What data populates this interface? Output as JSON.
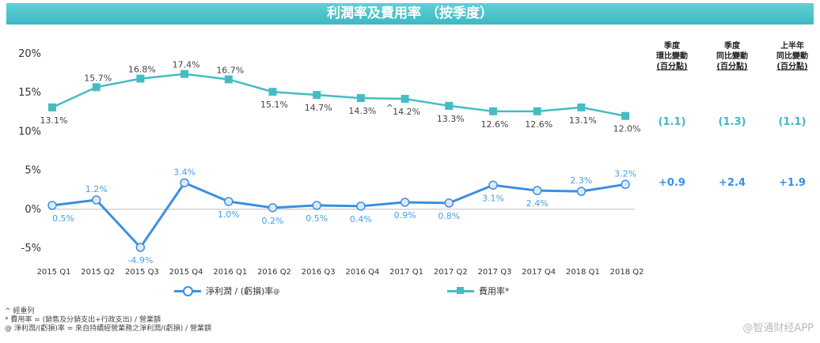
{
  "title": "利潤率及費用率 （按季度）",
  "chart_data": {
    "type": "line",
    "categories": [
      "2015 Q1",
      "2015 Q2",
      "2015 Q3",
      "2015 Q4",
      "2016 Q1",
      "2016 Q2",
      "2016 Q3",
      "2016 Q4",
      "2017 Q1",
      "2017 Q2",
      "2017 Q3",
      "2017 Q4",
      "2018 Q1",
      "2018 Q2"
    ],
    "y_ticks": [
      "20%",
      "15%",
      "10%",
      "5%",
      "0%",
      "-5%"
    ],
    "ylim": [
      -5,
      20
    ],
    "series": [
      {
        "name": "費用率*",
        "color": "#45bcc4",
        "values": [
          13.1,
          15.7,
          16.8,
          17.4,
          16.7,
          15.1,
          14.7,
          14.3,
          14.2,
          13.3,
          12.6,
          12.6,
          13.1,
          12.0
        ],
        "labels": [
          "13.1%",
          "15.7%",
          "16.8%",
          "17.4%",
          "16.7%",
          "15.1%",
          "14.7%",
          "14.3%",
          "14.2%",
          "13.3%",
          "12.6%",
          "12.6%",
          "13.1%",
          "12.0%"
        ],
        "annotations": {
          "7": "^"
        }
      },
      {
        "name": "淨利潤 / (虧損)率",
        "name_sup": "@",
        "color": "#3b8fe0",
        "values": [
          0.5,
          1.2,
          -4.9,
          3.4,
          1.0,
          0.2,
          0.5,
          0.4,
          0.9,
          0.8,
          3.1,
          2.4,
          2.3,
          3.2
        ],
        "labels": [
          "0.5%",
          "1.2%",
          "-4.9%",
          "3.4%",
          "1.0%",
          "0.2%",
          "0.5%",
          "0.4%",
          "0.9%",
          "0.8%",
          "3.1%",
          "2.4%",
          "2.3%",
          "3.2%"
        ]
      }
    ]
  },
  "side_table": {
    "columns": [
      {
        "h1": "季度",
        "h2": "環比變動",
        "h3": "(百分點)",
        "expense": "(1.1)",
        "net": "+0.9"
      },
      {
        "h1": "季度",
        "h2": "同比變動",
        "h3": "(百分點)",
        "expense": "(1.3)",
        "net": "+2.4"
      },
      {
        "h1": "上半年",
        "h2": "同比變動",
        "h3": "(百分點)",
        "expense": "(1.1)",
        "net": "+1.9"
      }
    ]
  },
  "legend": {
    "net": "淨利潤 / (虧損)率",
    "net_sup": "@",
    "expense": "費用率*"
  },
  "notes": [
    "^ 經重列",
    "* 費用率 = (銷售及分銷支出+行政支出) / 營業額",
    "@ 淨利潤/(虧損)率 = 來自持續經營業務之淨利潤/(虧損) / 營業額"
  ],
  "watermark": "@智通财经APP"
}
